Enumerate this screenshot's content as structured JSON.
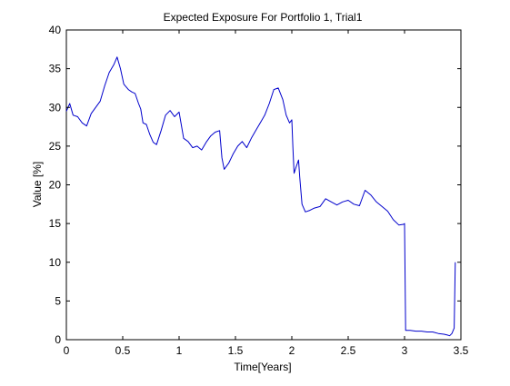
{
  "chart_data": {
    "type": "line",
    "title": "Expected Exposure For Portfolio 1, Trial1",
    "xlabel": "Time[Years]",
    "ylabel": "Value [%]",
    "xlim": [
      0,
      3.5
    ],
    "ylim": [
      0,
      40
    ],
    "xticks": [
      0,
      0.5,
      1,
      1.5,
      2,
      2.5,
      3,
      3.5
    ],
    "xtick_labels": [
      "0",
      "0.5",
      "1",
      "1.5",
      "2",
      "2.5",
      "3",
      "3.5"
    ],
    "yticks": [
      0,
      5,
      10,
      15,
      20,
      25,
      30,
      35,
      40
    ],
    "ytick_labels": [
      "0",
      "5",
      "10",
      "15",
      "20",
      "25",
      "30",
      "35",
      "40"
    ],
    "grid": false,
    "line_color": "#0000cc",
    "series": [
      {
        "x": [
          0,
          0.03,
          0.06,
          0.1,
          0.14,
          0.18,
          0.22,
          0.26,
          0.3,
          0.34,
          0.38,
          0.42,
          0.45,
          0.48,
          0.51,
          0.55,
          0.58,
          0.61,
          0.64,
          0.66,
          0.68,
          0.71,
          0.74,
          0.77,
          0.8,
          0.84,
          0.88,
          0.92,
          0.96,
          1.0,
          1.04,
          1.08,
          1.12,
          1.16,
          1.2,
          1.24,
          1.28,
          1.32,
          1.36,
          1.38,
          1.4,
          1.44,
          1.48,
          1.52,
          1.56,
          1.6,
          1.64,
          1.68,
          1.72,
          1.76,
          1.8,
          1.84,
          1.88,
          1.92,
          1.95,
          1.98,
          2.0,
          2.01,
          2.02,
          2.04,
          2.06,
          2.07,
          2.09,
          2.12,
          2.16,
          2.2,
          2.25,
          2.3,
          2.35,
          2.4,
          2.45,
          2.5,
          2.55,
          2.6,
          2.65,
          2.7,
          2.75,
          2.8,
          2.85,
          2.9,
          2.95,
          2.99,
          3.0,
          3.01,
          3.05,
          3.1,
          3.15,
          3.2,
          3.25,
          3.3,
          3.35,
          3.38,
          3.4,
          3.42,
          3.44,
          3.45
        ],
        "y": [
          29.5,
          30.5,
          29.0,
          28.8,
          28.0,
          27.6,
          29.2,
          30.0,
          30.8,
          32.8,
          34.5,
          35.5,
          36.5,
          35.0,
          33.0,
          32.3,
          32.0,
          31.8,
          30.5,
          29.8,
          28.0,
          27.8,
          26.5,
          25.5,
          25.2,
          27.0,
          29.0,
          29.6,
          28.8,
          29.4,
          26.0,
          25.6,
          24.8,
          25.0,
          24.5,
          25.5,
          26.3,
          26.8,
          27.0,
          23.5,
          22.0,
          22.8,
          24.0,
          25.0,
          25.6,
          24.8,
          26.0,
          27.0,
          28.0,
          29.0,
          30.5,
          32.3,
          32.5,
          31.0,
          29.0,
          28.0,
          28.4,
          24.8,
          21.5,
          22.4,
          23.2,
          21.0,
          17.5,
          16.5,
          16.7,
          17.0,
          17.2,
          18.2,
          17.8,
          17.4,
          17.8,
          18.0,
          17.5,
          17.3,
          19.3,
          18.7,
          17.8,
          17.2,
          16.6,
          15.5,
          14.8,
          14.9,
          15.0,
          1.2,
          1.2,
          1.1,
          1.1,
          1.0,
          1.0,
          0.8,
          0.7,
          0.6,
          0.5,
          0.8,
          1.5,
          10.0
        ]
      }
    ]
  }
}
